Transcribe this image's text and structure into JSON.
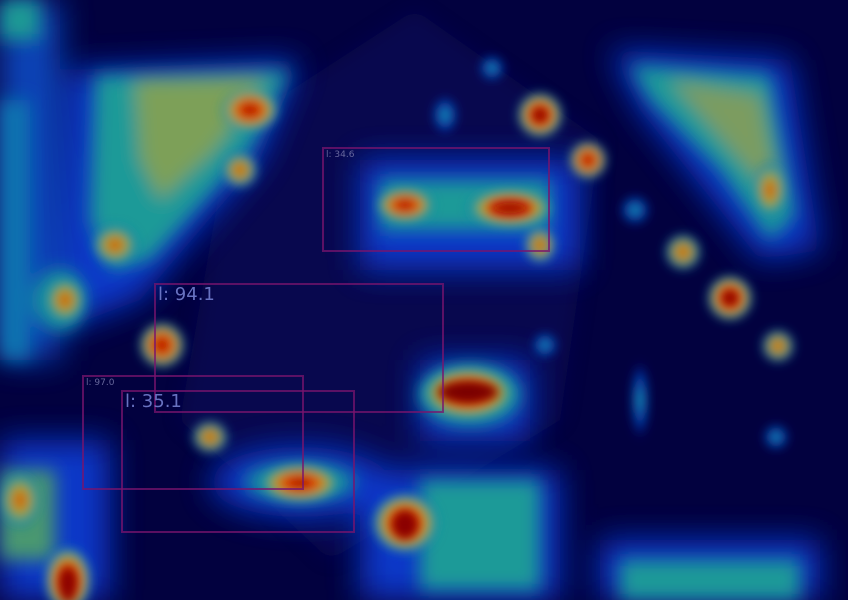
{
  "detections": [
    {
      "label": "l: 34.6",
      "size": "small"
    },
    {
      "label": "l: 94.1",
      "size": "large"
    },
    {
      "label": "l: 97.0",
      "size": "small"
    },
    {
      "label": "l: 35.1",
      "size": "large"
    }
  ]
}
